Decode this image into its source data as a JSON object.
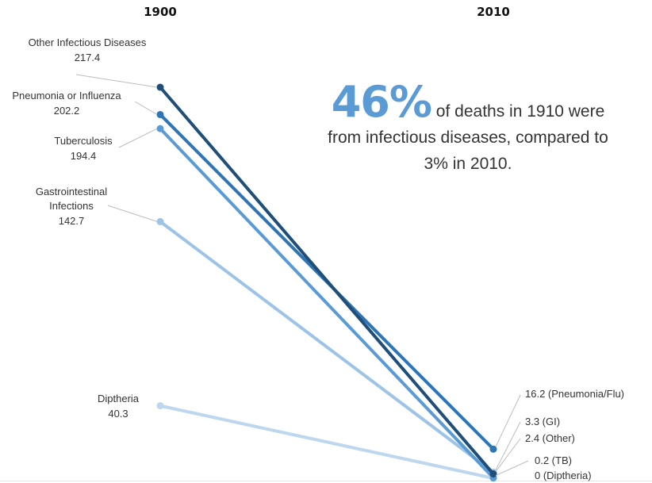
{
  "chart_data": {
    "type": "line",
    "x": [
      "1900",
      "2010"
    ],
    "series": [
      {
        "name": "Other Infectious Diseases",
        "values": [
          217.4,
          2.4
        ],
        "value_labels": [
          "217.4",
          "2.4"
        ],
        "end_label": "(Other)",
        "color": "#1f4e79"
      },
      {
        "name": "Pneumonia or Influenza",
        "values": [
          202.2,
          16.2
        ],
        "value_labels": [
          "202.2",
          "16.2"
        ],
        "end_label": "(Pneumonia/Flu)",
        "color": "#2e75b6"
      },
      {
        "name": "Tuberculosis",
        "values": [
          194.4,
          0.2
        ],
        "value_labels": [
          "194.4",
          "0.2"
        ],
        "end_label": "(TB)",
        "color": "#5b9bd5"
      },
      {
        "name": "Gastrointestinal Infections",
        "values": [
          142.7,
          3.3
        ],
        "value_labels": [
          "142.7",
          "3.3"
        ],
        "end_label": "(GI)",
        "color": "#9dc3e6"
      },
      {
        "name": "Diptheria",
        "values": [
          40.3,
          0
        ],
        "value_labels": [
          "40.3",
          "0"
        ],
        "end_label": "(Diptheria)",
        "color": "#bdd7ee"
      }
    ],
    "ylim": [
      0,
      217.4
    ],
    "grid": false,
    "legend": "none"
  },
  "annotation": {
    "big": "46%",
    "line1": " of deaths in 1910 were",
    "line2": "from infectious diseases, compared to",
    "line3": "3% in 2010."
  }
}
